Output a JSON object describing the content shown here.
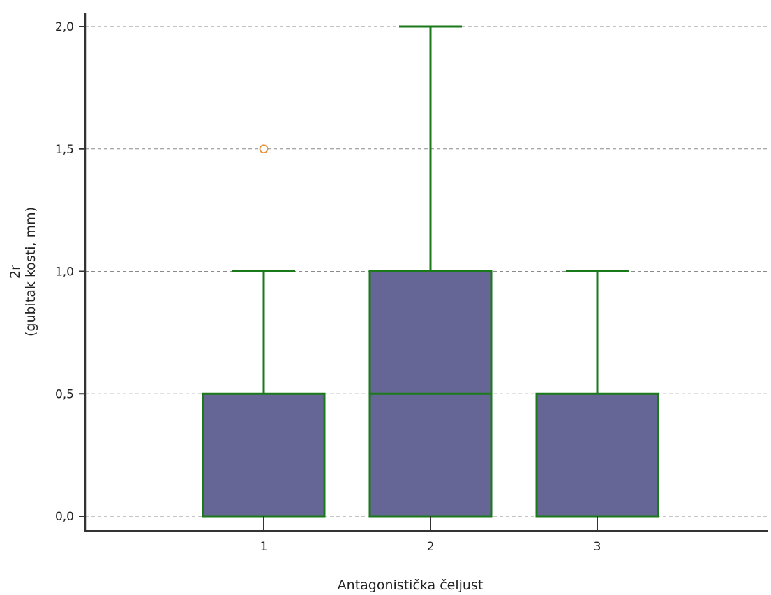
{
  "chart_data": {
    "type": "boxplot",
    "title": "",
    "xlabel": "Antagonistička čeljust",
    "ylabel_lines": [
      "2r",
      "(gubitak kosti, mm)"
    ],
    "ylim": [
      0.0,
      2.0
    ],
    "yticks": [
      {
        "value": 0.0,
        "label": "0,0"
      },
      {
        "value": 0.5,
        "label": "0,5"
      },
      {
        "value": 1.0,
        "label": "1,0"
      },
      {
        "value": 1.5,
        "label": "1,5"
      },
      {
        "value": 2.0,
        "label": "2,0"
      }
    ],
    "grid": "horizontal-dashed",
    "categories": [
      "1",
      "2",
      "3"
    ],
    "boxes": [
      {
        "category": "1",
        "q1": 0.0,
        "median": 0.0,
        "q3": 0.5,
        "whisker_low": 0.0,
        "whisker_high": 1.0,
        "outliers": [
          1.5
        ]
      },
      {
        "category": "2",
        "q1": 0.0,
        "median": 0.5,
        "q3": 1.0,
        "whisker_low": 0.0,
        "whisker_high": 2.0,
        "outliers": []
      },
      {
        "category": "3",
        "q1": 0.0,
        "median": 0.0,
        "q3": 0.5,
        "whisker_low": 0.0,
        "whisker_high": 1.0,
        "outliers": []
      }
    ],
    "colors": {
      "box_fill": "#666696",
      "box_edge": "#1a7a1a",
      "outlier": "#e8903a",
      "grid": "#8a8a8a",
      "axis": "#333333"
    }
  }
}
